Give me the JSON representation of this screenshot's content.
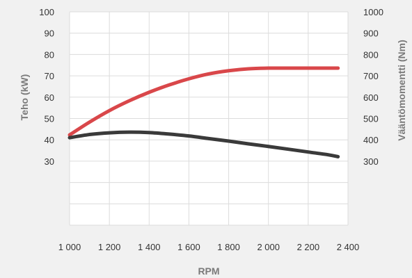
{
  "chart_data": {
    "type": "line",
    "xlabel": "RPM",
    "ylabel_left": "Teho (kW)",
    "ylabel_right": "Vääntömomentti (Nm)",
    "x_ticks": [
      1000,
      1200,
      1400,
      1600,
      1800,
      2000,
      2200,
      2400
    ],
    "x_tick_labels": [
      "1 000",
      "1 200",
      "1 400",
      "1 600",
      "1 800",
      "2 000",
      "2 200",
      "2 400"
    ],
    "xlim": [
      1000,
      2400
    ],
    "ylim_left": [
      0,
      100
    ],
    "ylim_right": [
      0,
      1000
    ],
    "y_left_ticks": [
      30,
      40,
      50,
      60,
      70,
      80,
      90,
      100
    ],
    "y_right_ticks": [
      300,
      400,
      500,
      600,
      700,
      800,
      900,
      1000
    ],
    "grid": true,
    "series": [
      {
        "axis": "left",
        "color": "#d9474a",
        "x": [
          1000,
          1100,
          1200,
          1300,
          1400,
          1500,
          1600,
          1700,
          1800,
          1900,
          2000,
          2100,
          2200,
          2300,
          2350
        ],
        "y": [
          42.3,
          48.3,
          53.7,
          58.3,
          62.3,
          65.7,
          68.6,
          70.9,
          72.4,
          73.3,
          73.6,
          73.6,
          73.6,
          73.6,
          73.6
        ]
      },
      {
        "axis": "right",
        "color": "#3a3a3a",
        "x": [
          1000,
          1100,
          1200,
          1300,
          1400,
          1500,
          1600,
          1700,
          1800,
          1900,
          2000,
          2100,
          2200,
          2300,
          2350
        ],
        "y": [
          410,
          425,
          433,
          436,
          434,
          427,
          418,
          406,
          394,
          381,
          369,
          356,
          343,
          330,
          321
        ]
      }
    ]
  }
}
